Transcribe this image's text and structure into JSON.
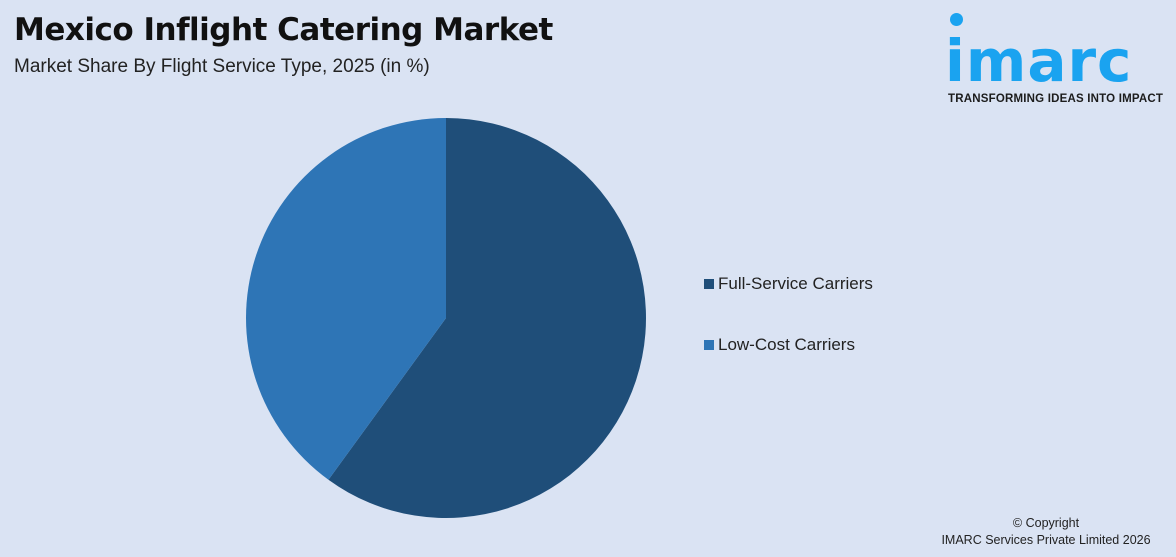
{
  "header": {
    "title": "Mexico Inflight Catering Market",
    "subtitle": "Market Share By Flight Service Type, 2025 (in %)"
  },
  "logo": {
    "word": "imarc",
    "tagline": "TRANSFORMING IDEAS INTO IMPACT",
    "color": "#1aa3f0"
  },
  "legend": {
    "items": [
      {
        "label": "Full-Service Carriers",
        "color": "#1f4e79"
      },
      {
        "label": "Low-Cost Carriers",
        "color": "#2e75b6"
      }
    ]
  },
  "footer": {
    "copyright_line1": "© Copyright",
    "copyright_line2": "IMARC Services Private Limited 2026"
  },
  "chart_data": {
    "type": "pie",
    "title": "Mexico Inflight Catering Market",
    "subtitle": "Market Share By Flight Service Type, 2025 (in %)",
    "categories": [
      "Full-Service Carriers",
      "Low-Cost Carriers"
    ],
    "values": [
      60,
      40
    ],
    "colors": [
      "#1f4e79",
      "#2e75b6"
    ],
    "start_angle": "12 o'clock, clockwise",
    "legend_position": "right",
    "data_labels": false
  }
}
